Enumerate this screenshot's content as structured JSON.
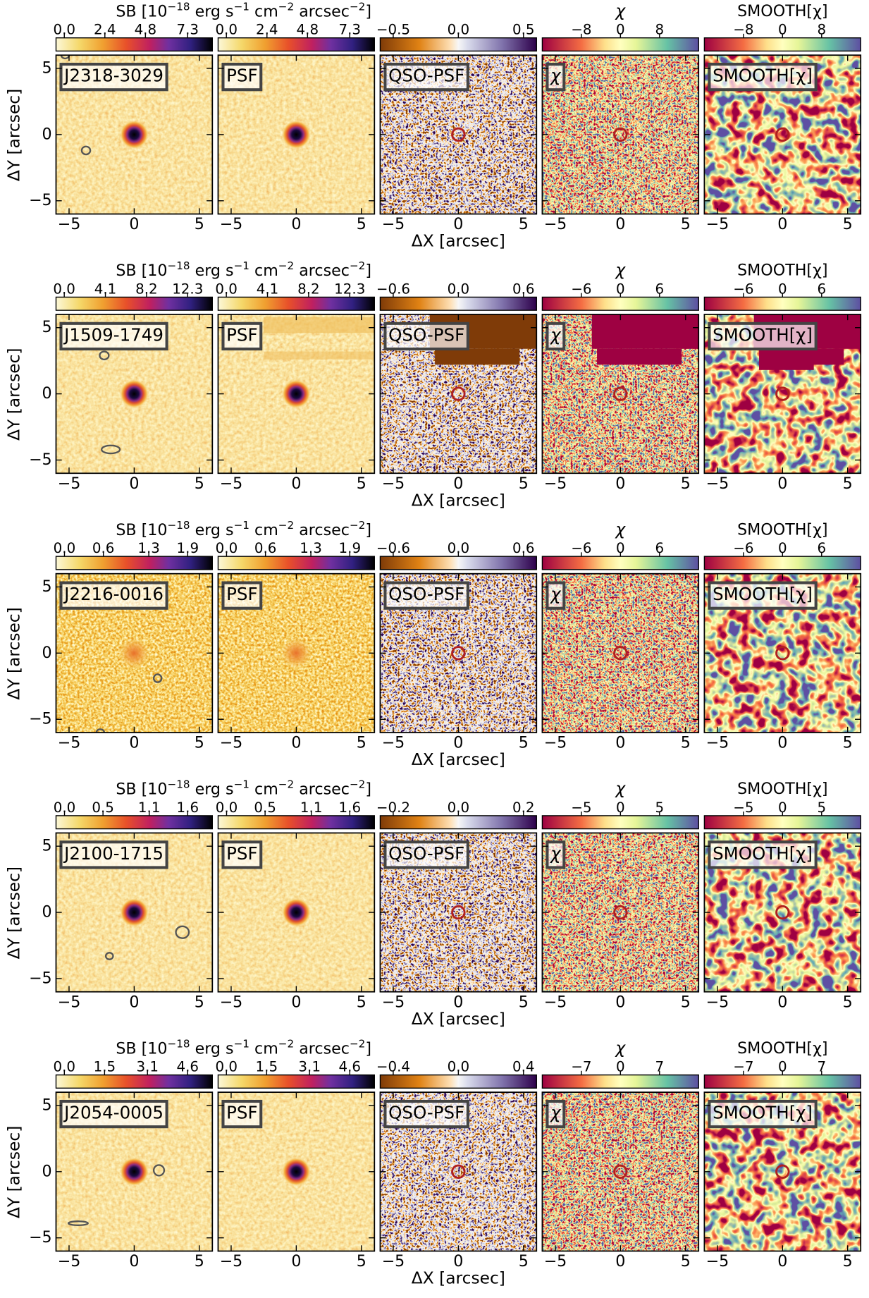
{
  "sb_label": [
    "SB [10",
    "−18",
    " erg s",
    "−1",
    " cm",
    "−2",
    " arcsec",
    "−2",
    "]"
  ],
  "psf_label": "PSF",
  "resid_label": "QSO-PSF",
  "chi_label": "χ",
  "smooth_label": "SMOOTH[χ]",
  "xlabel": "ΔX [arcsec]",
  "ylabel": "ΔY [arcsec]",
  "xlim": [
    -6,
    6
  ],
  "ylim": [
    -6,
    6
  ],
  "xticks": [
    {
      "value": -5,
      "label": "−5"
    },
    0,
    5
  ],
  "yticks": [
    {
      "value": -5,
      "label": "−5"
    },
    0,
    5
  ],
  "rows": [
    {
      "quasar": "J2318-3029",
      "sb_lim": [
        -0.49,
        8.76
      ],
      "sb_ticks": [
        {
          "value": 0,
          "label": "0.0"
        },
        2.4,
        4.8,
        7.3
      ],
      "resid_lim": [
        -0.6,
        0.6
      ],
      "resid_ticks": [
        {
          "value": -0.5,
          "label": "−0.5"
        },
        {
          "value": 0,
          "label": "0.0"
        },
        0.5
      ],
      "chi_lim": [
        -16,
        16
      ],
      "chi_ticks": [
        {
          "value": -8,
          "label": "−8"
        },
        0,
        8
      ]
    },
    {
      "quasar": "J1509-1749",
      "sb_lim": [
        -0.82,
        14.76
      ],
      "sb_ticks": [
        {
          "value": 0,
          "label": "0.0"
        },
        4.1,
        8.2,
        12.3
      ],
      "resid_lim": [
        -0.72,
        0.72
      ],
      "resid_ticks": [
        {
          "value": -0.6,
          "label": "−0.6"
        },
        {
          "value": 0,
          "label": "0.0"
        },
        0.6
      ],
      "chi_lim": [
        -12,
        12
      ],
      "chi_ticks": [
        {
          "value": -6,
          "label": "−6"
        },
        0,
        6
      ]
    },
    {
      "quasar": "J2216-0016",
      "sb_lim": [
        -0.13,
        2.28
      ],
      "sb_ticks": [
        {
          "value": 0,
          "label": "0.0"
        },
        0.6,
        1.3,
        1.9
      ],
      "resid_lim": [
        -0.72,
        0.72
      ],
      "resid_ticks": [
        {
          "value": -0.6,
          "label": "−0.6"
        },
        {
          "value": 0,
          "label": "0.0"
        },
        0.6
      ],
      "chi_lim": [
        -12,
        12
      ],
      "chi_ticks": [
        {
          "value": -6,
          "label": "−6"
        },
        0,
        6
      ]
    },
    {
      "quasar": "J2100-1715",
      "sb_lim": [
        -0.11,
        1.92
      ],
      "sb_ticks": [
        {
          "value": 0,
          "label": "0.0"
        },
        0.5,
        1.1,
        1.6
      ],
      "resid_lim": [
        -0.24,
        0.24
      ],
      "resid_ticks": [
        {
          "value": -0.2,
          "label": "−0.2"
        },
        {
          "value": 0,
          "label": "0.0"
        },
        0.2
      ],
      "chi_lim": [
        -10,
        10
      ],
      "chi_ticks": [
        {
          "value": -5,
          "label": "−5"
        },
        0,
        5
      ]
    },
    {
      "quasar": "J2054-0005",
      "sb_lim": [
        -0.31,
        5.52
      ],
      "sb_ticks": [
        {
          "value": 0,
          "label": "0.0"
        },
        1.5,
        3.1,
        4.6
      ],
      "resid_lim": [
        -0.48,
        0.48
      ],
      "resid_ticks": [
        {
          "value": -0.4,
          "label": "−0.4"
        },
        {
          "value": 0,
          "label": "0.0"
        },
        0.4
      ],
      "chi_lim": [
        -14,
        14
      ],
      "chi_ticks": [
        {
          "value": -7,
          "label": "−7"
        },
        0,
        7
      ]
    }
  ]
}
